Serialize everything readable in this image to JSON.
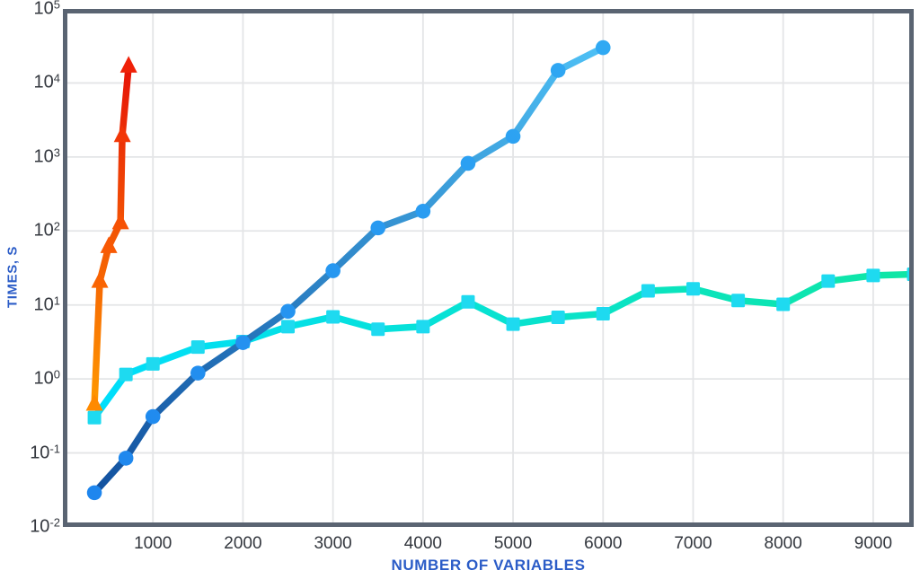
{
  "chart_data": {
    "type": "line",
    "title": "",
    "xlabel": "NUMBER OF VARIABLES",
    "ylabel": "TIMES, S",
    "x_range": [
      0,
      9450
    ],
    "y_log_range": [
      -2,
      5
    ],
    "grid": true,
    "legend": "none",
    "x_ticks": [
      1000,
      2000,
      3000,
      4000,
      5000,
      6000,
      7000,
      8000,
      9000
    ],
    "y_tick_base": "10",
    "y_tick_exponents": [
      5,
      4,
      3,
      2,
      1,
      0,
      -1,
      -2
    ],
    "axis_title_color": "#2b5cc7",
    "tick_label_color": "#33373e",
    "frame_color": "#5a6472",
    "gridline_color": "#e4e5e7",
    "series": [
      {
        "name": "cyan-flat-series",
        "marker": "square",
        "line_color_start": "#00defc",
        "line_color_end": "#0fe6a4",
        "marker_color_start": "#1edaf0",
        "marker_color_end": "#1edaf0",
        "x": [
          350,
          700,
          1000,
          1500,
          2000,
          2500,
          3000,
          3500,
          4000,
          4500,
          5000,
          5500,
          6000,
          6500,
          7000,
          7500,
          8000,
          8500,
          9000,
          9450
        ],
        "y": [
          0.3,
          1.15,
          1.6,
          2.7,
          3.2,
          5.1,
          6.9,
          4.7,
          5.1,
          11,
          5.5,
          6.8,
          7.6,
          15.5,
          16.5,
          11.5,
          10.2,
          21,
          25,
          26
        ]
      },
      {
        "name": "blue-growing-series",
        "marker": "circle",
        "line_color_start": "#12519f",
        "line_color_end": "#4ec0f5",
        "marker_color_start": "#1e86ee",
        "marker_color_end": "#30a9f3",
        "x": [
          350,
          700,
          1000,
          1500,
          2000,
          2500,
          3000,
          3500,
          4000,
          4500,
          5000,
          5500,
          6000
        ],
        "y": [
          0.029,
          0.085,
          0.31,
          1.2,
          3.1,
          8.2,
          29,
          110,
          185,
          820,
          1900,
          14800,
          30000
        ]
      },
      {
        "name": "red-steep-series",
        "marker": "triangle",
        "line_color_start": "#ff9800",
        "line_color_end": "#e61408",
        "marker_color_start": "#ff8a00",
        "marker_color_end": "#ef2008",
        "x": [
          350,
          410,
          510,
          640,
          660,
          730
        ],
        "y": [
          0.46,
          21,
          62,
          130,
          1960,
          17000
        ]
      }
    ]
  }
}
